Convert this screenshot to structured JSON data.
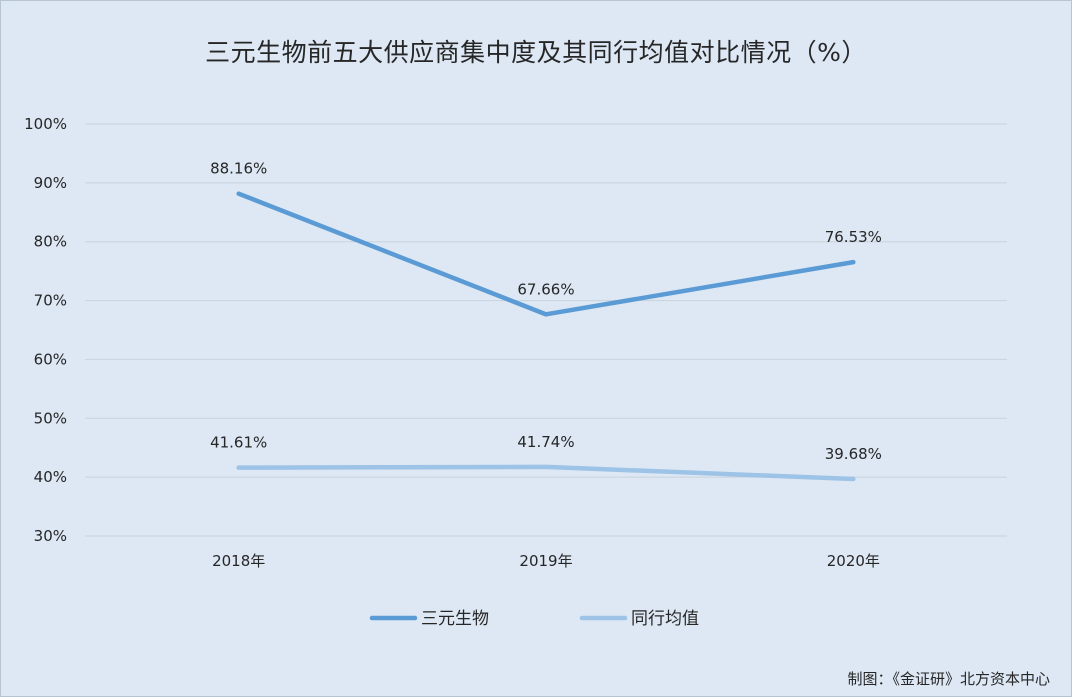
{
  "chart_data": {
    "type": "line",
    "title": "三元生物前五大供应商集中度及其同行均值对比情况（%）",
    "categories": [
      "2018年",
      "2019年",
      "2020年"
    ],
    "series": [
      {
        "name": "三元生物",
        "values": [
          88.16,
          67.66,
          76.53
        ],
        "labels": [
          "88.16%",
          "67.66%",
          "76.53%"
        ],
        "color": "#5b9bd5"
      },
      {
        "name": "同行均值",
        "values": [
          41.61,
          41.74,
          39.68
        ],
        "labels": [
          "41.61%",
          "41.74%",
          "39.68%"
        ],
        "color": "#9dc3e6"
      }
    ],
    "ylim": [
      30,
      100
    ],
    "yticks": [
      "30%",
      "40%",
      "50%",
      "60%",
      "70%",
      "80%",
      "90%",
      "100%"
    ],
    "ytick_values": [
      30,
      40,
      50,
      60,
      70,
      80,
      90,
      100
    ],
    "grid": true,
    "legend": "bottom",
    "gridline_color": "#c9d2dc",
    "background_color": "#dde8f4"
  },
  "credit": "制图：《金证研》北方资本中心"
}
